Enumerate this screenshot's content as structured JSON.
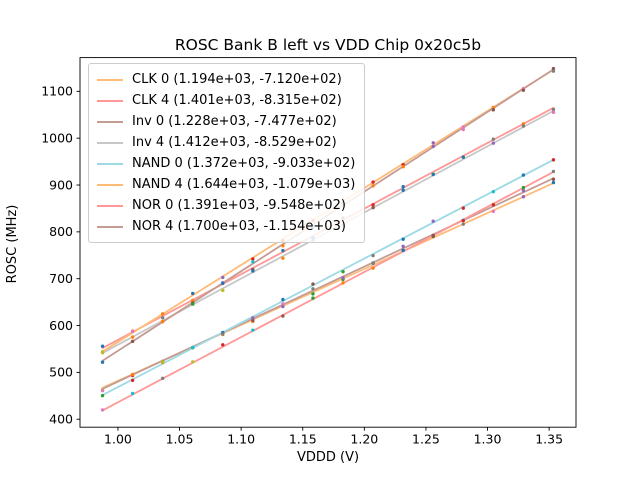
{
  "chart_data": {
    "type": "scatter",
    "title": "ROSC Bank B left vs VDD Chip 0x20c5b",
    "xlabel": "VDDD (V)",
    "ylabel": "ROSC (MHz)",
    "xlim": [
      0.9692,
      1.3718
    ],
    "ylim": [
      383,
      1172
    ],
    "grid": false,
    "legend_position": "upper left",
    "xticks": [
      {
        "v": 1.0,
        "label": "1.00"
      },
      {
        "v": 1.05,
        "label": "1.05"
      },
      {
        "v": 1.1,
        "label": "1.10"
      },
      {
        "v": 1.15,
        "label": "1.15"
      },
      {
        "v": 1.2,
        "label": "1.20"
      },
      {
        "v": 1.25,
        "label": "1.25"
      },
      {
        "v": 1.3,
        "label": "1.30"
      },
      {
        "v": 1.35,
        "label": "1.35"
      }
    ],
    "yticks": [
      {
        "v": 400,
        "label": "400"
      },
      {
        "v": 500,
        "label": "500"
      },
      {
        "v": 600,
        "label": "600"
      },
      {
        "v": 700,
        "label": "700"
      },
      {
        "v": 800,
        "label": "800"
      },
      {
        "v": 900,
        "label": "900"
      },
      {
        "v": 1000,
        "label": "1000"
      },
      {
        "v": 1100,
        "label": "1100"
      }
    ],
    "x_samples": [
      0.9875,
      1.0119,
      1.0363,
      1.0607,
      1.0851,
      1.1095,
      1.1339,
      1.1583,
      1.1827,
      1.2071,
      1.2315,
      1.2559,
      1.2803,
      1.3047,
      1.3291,
      1.3535
    ],
    "series": [
      {
        "name": "CLK 0",
        "slope": 1194,
        "intercept": -712.0,
        "line_color": "#ffbb78",
        "legend_label": "CLK 0 (1.194e+03, -7.120e+02)"
      },
      {
        "name": "CLK 4",
        "slope": 1401,
        "intercept": -831.5,
        "line_color": "#ff9896",
        "legend_label": "CLK 4 (1.401e+03, -8.315e+02)"
      },
      {
        "name": "Inv 0",
        "slope": 1228,
        "intercept": -747.7,
        "line_color": "#c49c94",
        "legend_label": "Inv 0 (1.228e+03, -7.477e+02)"
      },
      {
        "name": "Inv 4",
        "slope": 1412,
        "intercept": -852.9,
        "line_color": "#c7c7c7",
        "legend_label": "Inv 4 (1.412e+03, -8.529e+02)"
      },
      {
        "name": "NAND 0",
        "slope": 1372,
        "intercept": -903.3,
        "line_color": "#9edae5",
        "legend_label": "NAND 0 (1.372e+03, -9.033e+02)"
      },
      {
        "name": "NAND 4",
        "slope": 1644,
        "intercept": -1079.0,
        "line_color": "#ffbb78",
        "legend_label": "NAND 4 (1.644e+03, -1.079e+03)"
      },
      {
        "name": "NOR 0",
        "slope": 1391,
        "intercept": -954.8,
        "line_color": "#ff9896",
        "legend_label": "NOR 0 (1.391e+03, -9.548e+02)"
      },
      {
        "name": "NOR 4",
        "slope": 1700,
        "intercept": -1154.0,
        "line_color": "#c49c94",
        "legend_label": "NOR 4 (1.700e+03, -1.154e+03)"
      }
    ],
    "point_palette": [
      "#1f77b4",
      "#ff7f0e",
      "#2ca02c",
      "#d62728",
      "#9467bd",
      "#8c564b",
      "#e377c2",
      "#7f7f7f",
      "#bcbd22",
      "#17becf"
    ],
    "axis_color": "#000000",
    "background_color": "#ffffff"
  }
}
